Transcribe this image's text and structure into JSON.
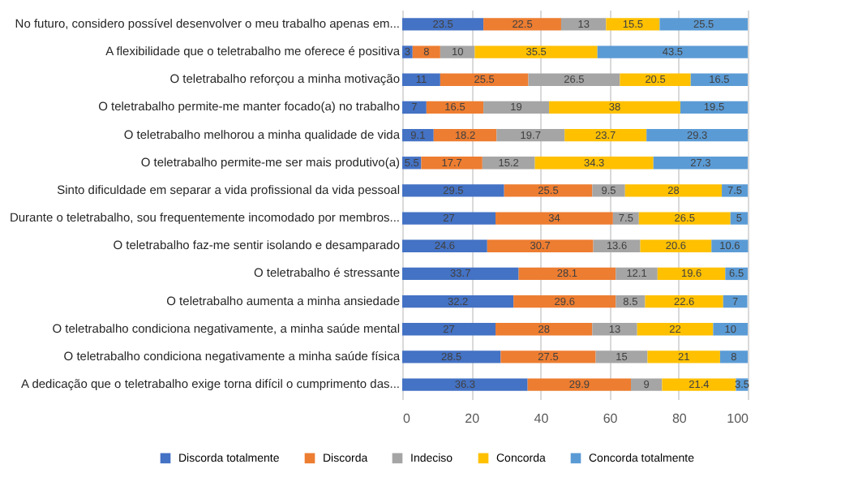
{
  "chart_data": {
    "type": "bar",
    "orientation": "horizontal",
    "stacked": true,
    "data_labels": true,
    "grid": "x",
    "legend": "bottom",
    "categories": [
      "No futuro, considero possível desenvolver o meu trabalho apenas em...",
      "A flexibilidade que o teletrabalho me oferece é positiva",
      "O teletrabalho reforçou a minha motivação",
      "O teletrabalho permite-me manter focado(a) no trabalho",
      "O teletrabalho melhorou a minha qualidade de vida",
      "O teletrabalho permite-me ser mais produtivo(a)",
      "Sinto dificuldade em separar a vida profissional da vida pessoal",
      "Durante o teletrabalho, sou frequentemente incomodado por membros...",
      "O teletrabalho faz-me sentir isolando e desamparado",
      "O teletrabalho é stressante",
      "O teletrabalho aumenta a minha ansiedade",
      "O teletrabalho condiciona negativamente, a minha saúde mental",
      "O teletrabalho condiciona negativamente a minha saúde física",
      "A dedicação que o teletrabalho exige torna difícil o cumprimento das..."
    ],
    "series": [
      {
        "name": "Discorda totalmente",
        "color": "#4472c4",
        "values": [
          23.5,
          3,
          11,
          7,
          9.1,
          5.5,
          29.5,
          27,
          24.6,
          33.7,
          32.2,
          27,
          28.5,
          36.3
        ]
      },
      {
        "name": "Discorda",
        "color": "#ed7d31",
        "values": [
          22.5,
          8,
          25.5,
          16.5,
          18.2,
          17.7,
          25.5,
          34,
          30.7,
          28.1,
          29.6,
          28,
          27.5,
          29.9
        ]
      },
      {
        "name": "Indeciso",
        "color": "#a5a5a5",
        "values": [
          13,
          10,
          26.5,
          19,
          19.7,
          15.2,
          9.5,
          7.5,
          13.6,
          12.1,
          8.5,
          13,
          15,
          9
        ]
      },
      {
        "name": "Concorda",
        "color": "#ffc000",
        "values": [
          15.5,
          35.5,
          20.5,
          38,
          23.7,
          34.3,
          28,
          26.5,
          20.6,
          19.6,
          22.6,
          22,
          21,
          21.4
        ]
      },
      {
        "name": "Concorda totalmente",
        "color": "#5b9bd5",
        "values": [
          25.5,
          43.5,
          16.5,
          19.5,
          29.3,
          27.3,
          7.5,
          5,
          10.6,
          6.5,
          7,
          10,
          8,
          3.5
        ]
      }
    ],
    "xlim": [
      0,
      100
    ],
    "xticks": [
      0,
      20,
      40,
      60,
      80,
      100
    ]
  }
}
